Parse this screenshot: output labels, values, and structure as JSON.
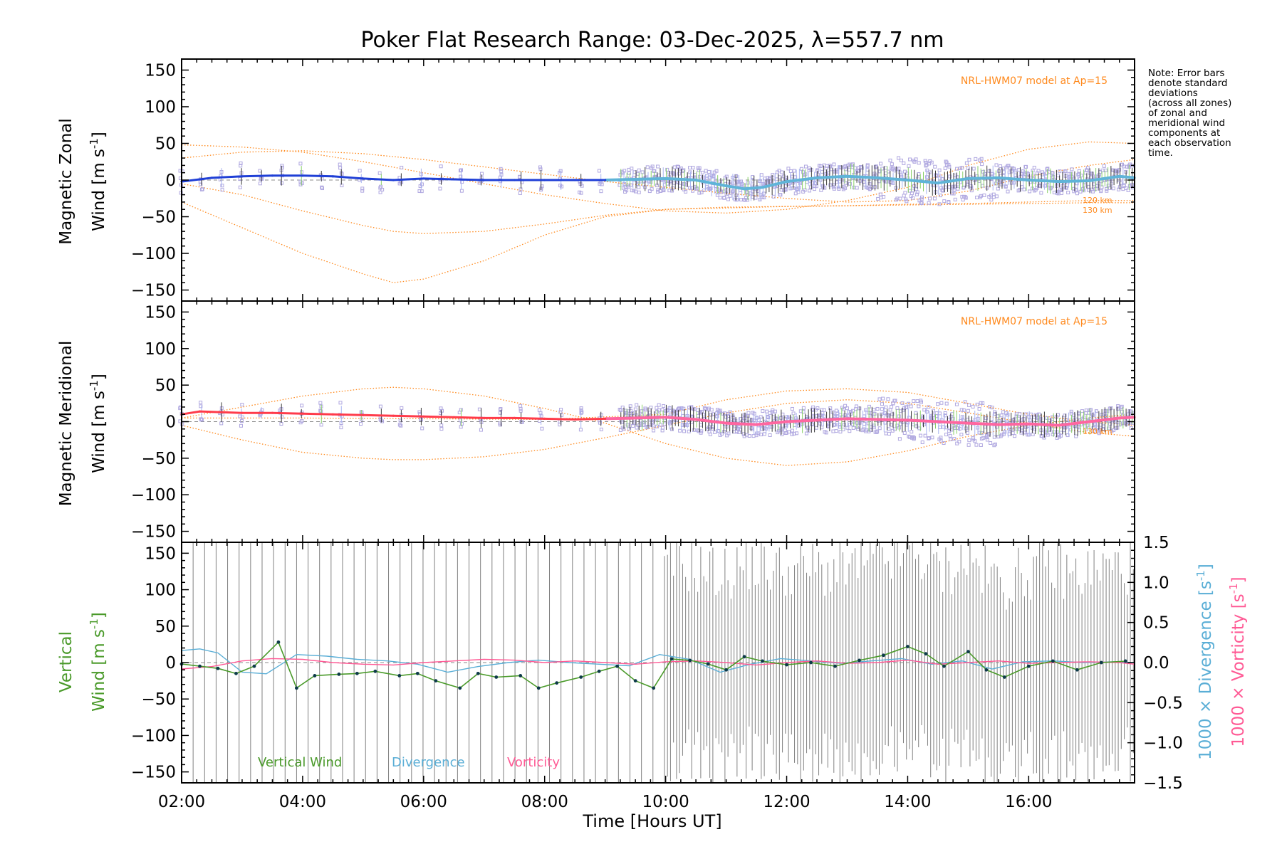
{
  "chart_data": {
    "type": "line",
    "title": "Poker Flat Research Range: 03-Dec-2025, λ=557.7 nm",
    "xlabel": "Time [Hours UT]",
    "xlim": [
      2.0,
      17.75
    ],
    "xticks": [
      2,
      4,
      6,
      8,
      10,
      12,
      14,
      16
    ],
    "xtick_labels": [
      "02:00",
      "04:00",
      "06:00",
      "08:00",
      "10:00",
      "12:00",
      "14:00",
      "16:00"
    ],
    "note": "Note: Error bars\ndenote standard\ndeviations\n(across all zones)\nof zonal and\nmeridional wind\ncomponents at\neach observation\ntime.",
    "colors": {
      "zonal": "#1f3fd6",
      "zonal_later": "#5fb4d8",
      "meridional": "#ff3b4a",
      "meridional_later": "#ff66a0",
      "model": "#ff8a1e",
      "scatter": "#b0a8e0",
      "vertical": "#4a9a2a",
      "divergence": "#5aaed6",
      "vorticity": "#ff5a95",
      "errorbar": "#808080"
    },
    "panels": [
      {
        "name": "zonal",
        "ylabel_line1": "Magnetic Zonal",
        "ylabel_line2": "Wind [m s",
        "ylabel_sup": "-1",
        "ylabel_close": "]",
        "ylim": [
          -165,
          165
        ],
        "yticks": [
          -150,
          -100,
          -50,
          0,
          50,
          100,
          150
        ],
        "model_label": "NRL-HWM07 model at Ap=15",
        "alt_labels": [
          "120 km",
          "130 km"
        ],
        "wind": {
          "x": [
            2.0,
            2.5,
            3.0,
            3.5,
            4.0,
            4.5,
            5.0,
            5.5,
            6.0,
            6.5,
            7.0,
            7.5,
            8.0,
            8.5,
            9.0,
            9.5,
            10.0,
            10.5,
            11.0,
            11.3,
            11.6,
            12.0,
            12.5,
            13.0,
            13.5,
            14.0,
            14.5,
            15.0,
            15.5,
            16.0,
            16.5,
            17.0,
            17.5,
            17.75
          ],
          "y": [
            -2,
            3,
            5,
            6,
            6,
            5,
            2,
            0,
            2,
            1,
            0,
            0,
            0,
            0,
            0,
            1,
            2,
            0,
            -8,
            -12,
            -10,
            -2,
            3,
            5,
            3,
            0,
            -4,
            2,
            3,
            0,
            -2,
            -1,
            5,
            3
          ]
        },
        "models": [
          {
            "x": [
              2.0,
              3.0,
              4.0,
              5.0,
              5.5,
              6.0,
              7.0,
              8.0,
              9.0,
              10.0,
              11.0,
              12.0,
              13.0,
              14.0,
              15.0,
              16.0,
              17.0,
              17.75
            ],
            "y": [
              -30,
              -65,
              -100,
              -128,
              -140,
              -135,
              -110,
              -75,
              -50,
              -40,
              -38,
              -36,
              -35,
              -33,
              -32,
              -30,
              -28,
              -28
            ]
          },
          {
            "x": [
              2.0,
              3.0,
              4.0,
              5.0,
              5.5,
              6.0,
              7.0,
              8.0,
              9.0,
              10.0,
              11.0,
              12.0,
              13.0,
              14.0,
              15.0,
              16.0,
              17.0,
              17.75
            ],
            "y": [
              -5,
              -20,
              -42,
              -62,
              -70,
              -73,
              -70,
              -60,
              -48,
              -40,
              -37,
              -36,
              -35,
              -34,
              -33,
              -32,
              -31,
              -31
            ]
          },
          {
            "x": [
              2.0,
              3.0,
              4.0,
              5.0,
              6.0,
              7.0,
              8.0,
              9.0,
              10.0,
              11.0,
              12.0,
              13.0,
              14.0,
              15.0,
              16.0,
              17.0,
              17.75
            ],
            "y": [
              48,
              45,
              38,
              25,
              10,
              -5,
              -20,
              -32,
              -42,
              -45,
              -40,
              -28,
              -10,
              20,
              42,
              52,
              50
            ]
          },
          {
            "x": [
              2.0,
              3.0,
              4.0,
              5.0,
              6.0,
              7.0,
              8.0,
              9.0,
              10.0,
              11.0,
              12.0,
              13.0,
              14.0,
              15.0,
              16.0,
              17.0,
              17.75
            ],
            "y": [
              30,
              38,
              40,
              36,
              28,
              18,
              8,
              -2,
              -10,
              -18,
              -25,
              -30,
              -28,
              -15,
              5,
              20,
              28
            ]
          }
        ]
      },
      {
        "name": "meridional",
        "ylabel_line1": "Magnetic Meridional",
        "ylabel_line2": "Wind [m s",
        "ylabel_sup": "-1",
        "ylabel_close": "]",
        "ylim": [
          -165,
          165
        ],
        "yticks": [
          -150,
          -100,
          -50,
          0,
          50,
          100,
          150
        ],
        "model_label": "NRL-HWM07 model at Ap=15",
        "alt_labels": [
          "130 km"
        ],
        "wind": {
          "x": [
            2.0,
            2.3,
            3.0,
            3.5,
            4.0,
            4.5,
            5.0,
            5.5,
            6.0,
            6.5,
            7.0,
            7.5,
            8.0,
            8.5,
            9.0,
            9.5,
            10.0,
            10.5,
            11.0,
            11.5,
            12.0,
            12.5,
            13.0,
            13.5,
            14.0,
            14.5,
            15.0,
            15.5,
            16.0,
            16.5,
            17.0,
            17.5,
            17.75
          ],
          "y": [
            10,
            14,
            12,
            12,
            11,
            10,
            9,
            8,
            7,
            6,
            5,
            5,
            4,
            3,
            4,
            5,
            6,
            3,
            -2,
            -4,
            0,
            2,
            4,
            3,
            2,
            0,
            -2,
            -4,
            -3,
            -5,
            0,
            5,
            6
          ]
        },
        "models": [
          {
            "x": [
              2.0,
              3.0,
              4.0,
              5.0,
              5.5,
              6.0,
              7.0,
              8.0,
              9.0,
              10.0,
              11.0,
              12.0,
              13.0,
              14.0,
              15.0,
              16.0,
              17.0,
              17.75
            ],
            "y": [
              -5,
              -25,
              -42,
              -50,
              -52,
              -52,
              -48,
              -38,
              -22,
              -5,
              12,
              25,
              30,
              25,
              12,
              -2,
              -15,
              -20
            ]
          },
          {
            "x": [
              2.0,
              3.0,
              4.0,
              5.0,
              5.5,
              6.0,
              7.0,
              8.0,
              9.0,
              10.0,
              11.0,
              12.0,
              13.0,
              14.0,
              15.0,
              16.0,
              17.0,
              17.75
            ],
            "y": [
              5,
              20,
              35,
              45,
              47,
              45,
              35,
              18,
              -2,
              -30,
              -50,
              -60,
              -55,
              -40,
              -20,
              -5,
              5,
              10
            ]
          },
          {
            "x": [
              2.0,
              4.0,
              6.0,
              8.0,
              10.0,
              11.0,
              12.0,
              13.0,
              14.0,
              15.0,
              16.0,
              17.0,
              17.75
            ],
            "y": [
              5,
              5,
              4,
              3,
              10,
              30,
              42,
              45,
              40,
              25,
              10,
              0,
              -5
            ]
          }
        ]
      },
      {
        "name": "vertical",
        "ylabel_line1": "Vertical",
        "ylabel_line2": "Wind [m s",
        "ylabel_sup": "-1",
        "ylabel_close": "]",
        "ylim": [
          -165,
          165
        ],
        "yticks": [
          -150,
          -100,
          -50,
          0,
          50,
          100,
          150
        ],
        "right_ylim": [
          -1.5,
          1.5
        ],
        "right_yticks": [
          -1.5,
          -1.0,
          -0.5,
          0.0,
          0.5,
          1.0,
          1.5
        ],
        "right_ytick_labels": [
          "−1.5",
          "−1.0",
          "−0.5",
          "0.0",
          "0.5",
          "1.0",
          "1.5"
        ],
        "right_label_div": "1000 × Divergence [s",
        "right_label_vor": "1000 × Vorticity [s",
        "legend": [
          "Vertical Wind",
          "Divergence",
          "Vorticity"
        ],
        "vertical_wind": {
          "x": [
            2.0,
            2.3,
            2.6,
            2.9,
            3.2,
            3.6,
            3.9,
            4.2,
            4.6,
            4.9,
            5.2,
            5.6,
            5.9,
            6.2,
            6.6,
            6.9,
            7.2,
            7.6,
            7.9,
            8.2,
            8.6,
            8.9,
            9.2,
            9.5,
            9.8,
            10.1,
            10.4,
            10.7,
            11.0,
            11.3,
            11.6,
            12.0,
            12.4,
            12.8,
            13.2,
            13.6,
            14.0,
            14.3,
            14.6,
            15.0,
            15.3,
            15.6,
            16.0,
            16.4,
            16.8,
            17.2,
            17.6
          ],
          "y": [
            -2,
            -5,
            -8,
            -15,
            -5,
            28,
            -35,
            -18,
            -16,
            -15,
            -12,
            -18,
            -15,
            -25,
            -35,
            -15,
            -20,
            -18,
            -35,
            -28,
            -20,
            -12,
            -5,
            -25,
            -35,
            5,
            3,
            -2,
            -10,
            8,
            2,
            -3,
            0,
            -5,
            3,
            10,
            22,
            12,
            -5,
            15,
            -10,
            -20,
            -5,
            2,
            -10,
            0,
            2
          ]
        },
        "divergence": {
          "x": [
            2.0,
            2.3,
            2.6,
            3.0,
            3.4,
            3.9,
            4.4,
            4.9,
            5.4,
            5.9,
            6.4,
            6.9,
            7.4,
            7.9,
            8.4,
            8.9,
            9.4,
            9.9,
            10.4,
            10.9,
            11.4,
            11.9,
            12.4,
            12.9,
            13.4,
            13.9,
            14.4,
            14.9,
            15.4,
            15.9,
            16.4,
            16.9,
            17.4,
            17.75
          ],
          "y": [
            0.15,
            0.17,
            0.12,
            -0.12,
            -0.14,
            0.1,
            0.08,
            0.04,
            0.02,
            -0.02,
            -0.12,
            -0.05,
            0.0,
            0.03,
            0.0,
            -0.02,
            -0.04,
            0.1,
            0.04,
            -0.12,
            -0.02,
            0.05,
            0.02,
            -0.01,
            0.02,
            0.05,
            -0.02,
            0.02,
            -0.08,
            0.01,
            0.02,
            0.0,
            0.01,
            0.0
          ]
        },
        "vorticity": {
          "x": [
            2.0,
            2.5,
            3.0,
            3.5,
            4.0,
            4.5,
            5.0,
            5.5,
            6.0,
            6.5,
            7.0,
            7.5,
            8.0,
            8.5,
            9.0,
            9.5,
            10.0,
            10.5,
            11.0,
            11.5,
            12.0,
            12.5,
            13.0,
            13.5,
            14.0,
            14.5,
            15.0,
            15.5,
            16.0,
            16.5,
            17.0,
            17.5,
            17.75
          ],
          "y": [
            -0.08,
            -0.05,
            0.02,
            0.05,
            0.04,
            0.0,
            -0.02,
            -0.03,
            0.0,
            0.02,
            0.04,
            0.03,
            0.0,
            0.02,
            0.0,
            -0.02,
            0.01,
            0.02,
            0.0,
            -0.03,
            0.0,
            0.02,
            -0.01,
            0.0,
            0.03,
            -0.02,
            0.0,
            0.02,
            -0.01,
            0.0,
            0.01,
            0.0,
            -0.02
          ]
        }
      }
    ]
  }
}
